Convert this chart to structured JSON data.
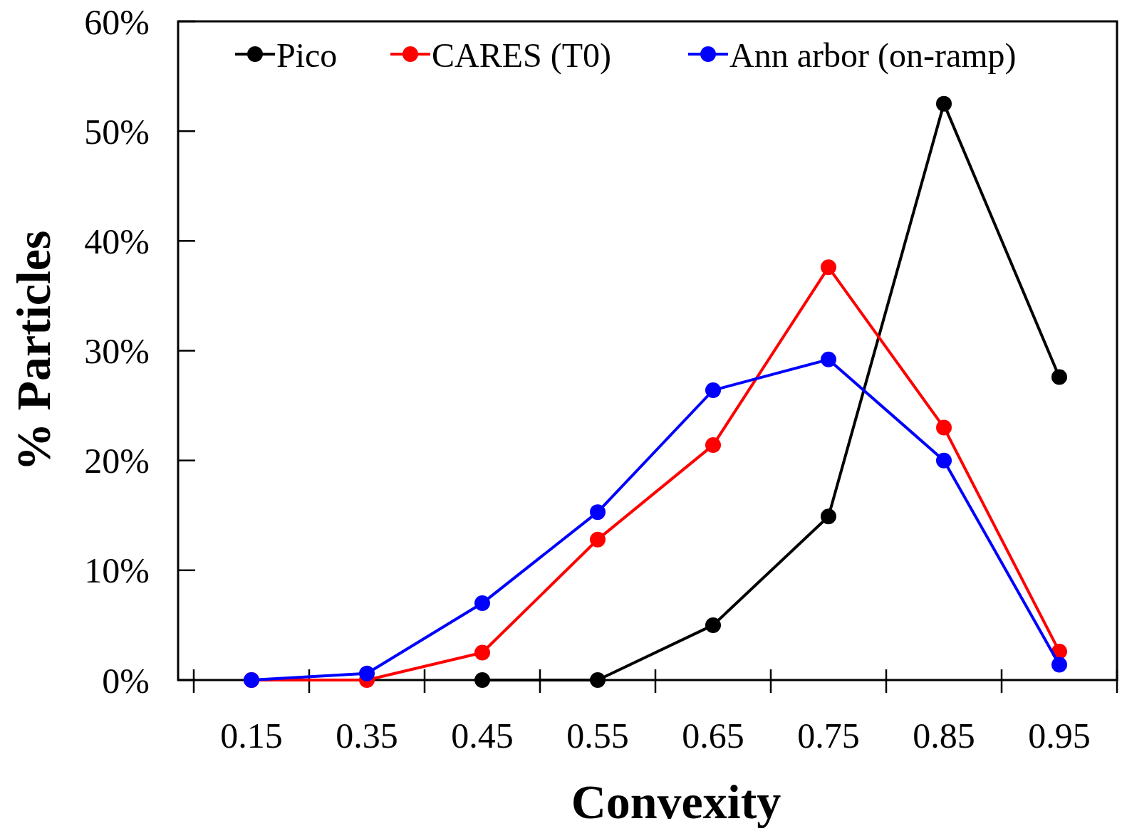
{
  "chart_data": {
    "type": "line",
    "xlabel": "Convexity",
    "ylabel": "% Particles",
    "categories": [
      "0.15",
      "0.35",
      "0.45",
      "0.55",
      "0.65",
      "0.75",
      "0.85",
      "0.95"
    ],
    "series": [
      {
        "name": "Pico",
        "color": "#000000",
        "values": [
          null,
          null,
          0,
          0,
          5.0,
          14.9,
          52.5,
          27.6
        ]
      },
      {
        "name": "CARES (T0)",
        "color": "#ff0000",
        "values": [
          0,
          0,
          2.5,
          12.8,
          21.4,
          37.6,
          23.0,
          2.6
        ]
      },
      {
        "name": "Ann arbor (on-ramp)",
        "color": "#0000ff",
        "values": [
          0,
          0.6,
          7.0,
          15.3,
          26.4,
          29.2,
          20.0,
          1.4
        ]
      }
    ],
    "ylim": [
      0,
      60
    ],
    "yticks": [
      {
        "value": 0,
        "label": "0%"
      },
      {
        "value": 10,
        "label": "10%"
      },
      {
        "value": 20,
        "label": "20%"
      },
      {
        "value": 30,
        "label": "30%"
      },
      {
        "value": 40,
        "label": "40%"
      },
      {
        "value": 50,
        "label": "50%"
      },
      {
        "value": 60,
        "label": "60%"
      }
    ],
    "legend": "top",
    "marker": "circle",
    "line_style": "solid"
  }
}
